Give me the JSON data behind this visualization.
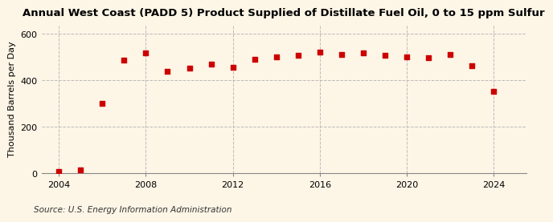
{
  "title": "Annual West Coast (PADD 5) Product Supplied of Distillate Fuel Oil, 0 to 15 ppm Sulfur",
  "ylabel": "Thousand Barrels per Day",
  "source": "Source: U.S. Energy Information Administration",
  "years": [
    2004,
    2005,
    2006,
    2007,
    2008,
    2009,
    2010,
    2011,
    2012,
    2013,
    2014,
    2015,
    2016,
    2017,
    2018,
    2019,
    2020,
    2021,
    2022,
    2023,
    2024
  ],
  "values": [
    10,
    15,
    302,
    488,
    519,
    440,
    452,
    469,
    458,
    490,
    503,
    508,
    523,
    511,
    518,
    509,
    501,
    499,
    511,
    463,
    353
  ],
  "marker_color": "#cc0000",
  "background_color": "#fdf5e6",
  "grid_color": "#bbbbbb",
  "ylim": [
    0,
    640
  ],
  "yticks": [
    0,
    200,
    400,
    600
  ],
  "xticks": [
    2004,
    2008,
    2012,
    2016,
    2020,
    2024
  ],
  "vgrid_years": [
    2004,
    2008,
    2012,
    2016,
    2020,
    2024
  ],
  "title_fontsize": 9.5,
  "label_fontsize": 8,
  "source_fontsize": 7.5
}
